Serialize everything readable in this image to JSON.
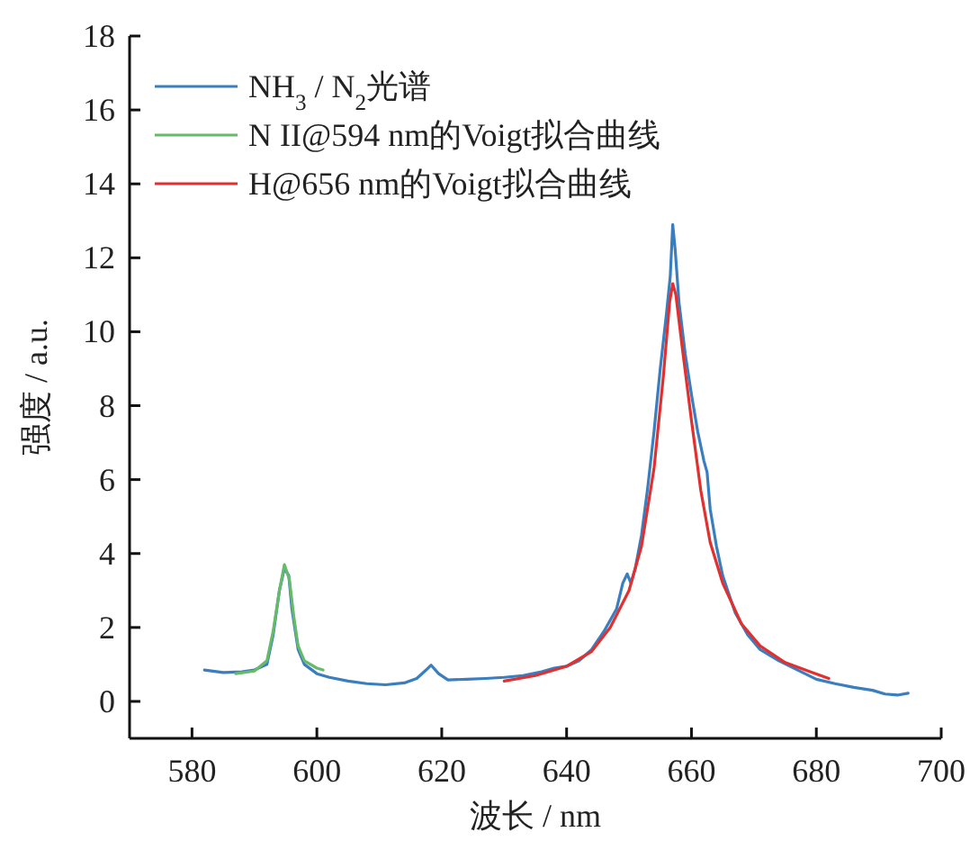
{
  "chart_data": {
    "type": "line",
    "xlabel": "波长 / nm",
    "ylabel": "强度 / a.u.",
    "xlim": [
      570,
      700
    ],
    "ylim": [
      -1,
      18
    ],
    "xticks": [
      580,
      600,
      620,
      640,
      660,
      680,
      700
    ],
    "yticks": [
      0,
      2,
      4,
      6,
      8,
      10,
      12,
      14,
      16,
      18
    ],
    "grid": false,
    "legend": "top left",
    "marker": "none",
    "line_style": "solid",
    "series": [
      {
        "name": "NH$_{3}$ / N$_{2}$光谱",
        "color": "#3a7ebf",
        "x": [
          582,
          585,
          588,
          590,
          592,
          593,
          594,
          594.8,
          595.5,
          596,
          597,
          598,
          600,
          602,
          605,
          608,
          611,
          614,
          616,
          617.5,
          618.3,
          619.5,
          621,
          624,
          627,
          630,
          633,
          636,
          638,
          640,
          642,
          644,
          646,
          648,
          649,
          649.7,
          650.3,
          651,
          652,
          653,
          654,
          655,
          656,
          656.6,
          657,
          657.4,
          658,
          659,
          660,
          661,
          662,
          662.5,
          663,
          664,
          665,
          667,
          669,
          671,
          674,
          677,
          680,
          683,
          686,
          689,
          691,
          693,
          694.7
        ],
        "values": [
          0.85,
          0.78,
          0.8,
          0.85,
          1.0,
          1.8,
          3.0,
          3.6,
          3.4,
          2.5,
          1.4,
          1.0,
          0.75,
          0.65,
          0.55,
          0.48,
          0.45,
          0.5,
          0.62,
          0.85,
          0.98,
          0.75,
          0.58,
          0.6,
          0.62,
          0.65,
          0.7,
          0.8,
          0.9,
          0.95,
          1.1,
          1.4,
          1.9,
          2.5,
          3.2,
          3.45,
          3.2,
          3.6,
          4.5,
          5.8,
          7.3,
          9.0,
          10.5,
          11.5,
          12.9,
          12.2,
          10.8,
          9.4,
          8.3,
          7.3,
          6.5,
          6.2,
          5.2,
          4.2,
          3.4,
          2.4,
          1.8,
          1.4,
          1.1,
          0.85,
          0.6,
          0.48,
          0.38,
          0.3,
          0.2,
          0.17,
          0.22
        ]
      },
      {
        "name": "N II@594 nm的Voigt拟合曲线",
        "color": "#66bb6a",
        "x": [
          587,
          590,
          592,
          593,
          594,
          594.8,
          595.6,
          596.3,
          597,
          598,
          600,
          601
        ],
        "values": [
          0.75,
          0.82,
          1.1,
          1.9,
          3.0,
          3.7,
          3.3,
          2.3,
          1.5,
          1.1,
          0.9,
          0.85
        ]
      },
      {
        "name": "H@656 nm的Voigt拟合曲线",
        "color": "#e03030",
        "x": [
          630,
          635,
          640,
          644,
          647,
          650,
          652,
          654,
          655.5,
          656.5,
          657,
          657.5,
          658.5,
          660,
          661.5,
          663,
          665,
          668,
          671,
          675,
          679,
          682
        ],
        "values": [
          0.55,
          0.7,
          0.95,
          1.35,
          2.0,
          3.0,
          4.2,
          6.3,
          8.8,
          10.8,
          11.3,
          11.0,
          9.6,
          7.6,
          5.7,
          4.3,
          3.2,
          2.1,
          1.5,
          1.05,
          0.8,
          0.62
        ]
      }
    ]
  }
}
